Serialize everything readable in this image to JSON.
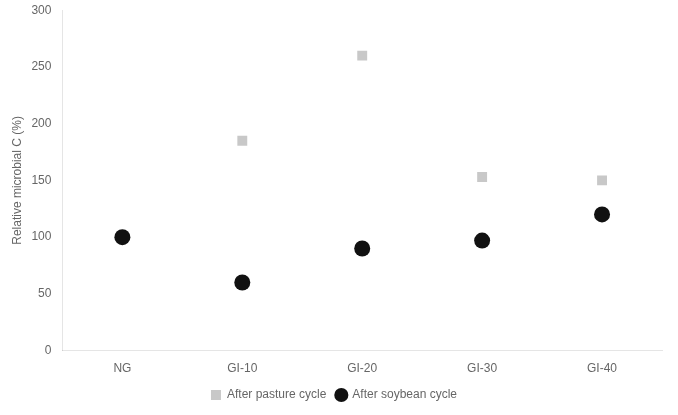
{
  "chart_data": {
    "type": "scatter",
    "categories": [
      "NG",
      "GI-10",
      "GI-20",
      "GI-30",
      "GI-40"
    ],
    "series": [
      {
        "name": "After pasture cycle",
        "color": "#c8c8c8",
        "marker": "square",
        "values": [
          null,
          185,
          260,
          153,
          150
        ]
      },
      {
        "name": "After soybean cycle",
        "color": "#111111",
        "marker": "circle",
        "values": [
          100,
          60,
          90,
          97,
          120
        ]
      }
    ],
    "ylabel": "Relative microbial C (%)",
    "ylim": [
      0,
      300
    ],
    "yticks": [
      0,
      50,
      100,
      150,
      200,
      250,
      300
    ],
    "grid": false,
    "legend": "bottom"
  }
}
